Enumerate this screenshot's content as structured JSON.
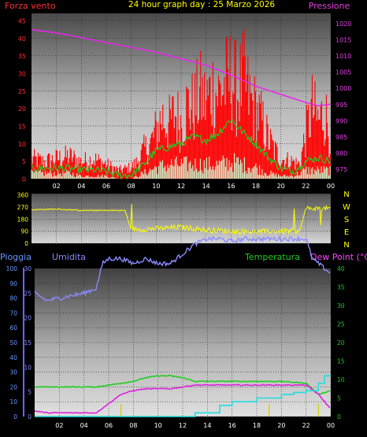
{
  "header": {
    "left_label": "Forza vento",
    "center_title": "24 hour graph day : 25 Marzo 2026",
    "right_label": "Pressione"
  },
  "colors": {
    "wind_axis": "#ff3030",
    "pressure_axis": "#e040e0",
    "wind_gust": "#ff0000",
    "wind_avg": "#22cc22",
    "wind_speed": "#c8f0c8",
    "pressure": "#ee22ee",
    "direction": "#ffff00",
    "pioggia_axis": "#6699ff",
    "umidita_axis": "#8888ff",
    "temp_axis": "#22cc22",
    "dew_axis": "#ff44ff",
    "humidity": "#8a8aff",
    "temperature": "#22cc22",
    "dewpoint": "#dd22dd",
    "rain": "#22dddd",
    "rain_rate": "#cccc00"
  },
  "chart_data": [
    {
      "type": "line",
      "title": "24 hour graph day : 25 Marzo 2026",
      "xlabel": "",
      "x_ticks": [
        "02",
        "04",
        "06",
        "08",
        "10",
        "12",
        "14",
        "16",
        "18",
        "20",
        "22",
        "00"
      ],
      "x_range_hours": [
        0,
        24
      ],
      "y_left": {
        "label": "Forza vento",
        "ticks": [
          0,
          5,
          10,
          15,
          20,
          25,
          30,
          35,
          40,
          45
        ],
        "range": [
          0,
          47
        ]
      },
      "y_right": {
        "label": "Pressione",
        "ticks": [
          975,
          980,
          985,
          990,
          995,
          1000,
          1005,
          1010,
          1015,
          1020
        ],
        "range": [
          972,
          1023
        ]
      },
      "grid": true,
      "series": [
        {
          "name": "Pressione",
          "axis": "right",
          "x": [
            0,
            2,
            4,
            6,
            8,
            10,
            12,
            14,
            16,
            18,
            20,
            22,
            23,
            24
          ],
          "y": [
            1018,
            1017,
            1015.5,
            1014,
            1012.5,
            1011,
            1009,
            1007,
            1004,
            1000.5,
            998,
            995.5,
            994.5,
            995
          ]
        },
        {
          "name": "",
          "axis": "left",
          "x": [
            0,
            1,
            2,
            3,
            4,
            5,
            6,
            7,
            8,
            8.5,
            9,
            9.5,
            10,
            10.5,
            11,
            11.5,
            12,
            12.5,
            13,
            13.5,
            14,
            14.5,
            15,
            15.5,
            16,
            16.5,
            17,
            17.5,
            18,
            18.5,
            19,
            19.5,
            20,
            21,
            21.5,
            22,
            22.5,
            23,
            23.5,
            24
          ],
          "y": [
            7,
            6,
            7,
            8,
            6,
            7,
            5,
            3,
            4,
            6,
            10,
            12,
            17,
            22,
            19,
            23,
            20,
            26,
            25,
            30,
            27,
            32,
            30,
            33,
            36,
            31,
            35,
            28,
            24,
            20,
            14,
            10,
            7,
            6,
            5,
            16,
            25,
            20,
            24,
            15
          ]
        },
        {
          "name": "",
          "axis": "left",
          "x": [
            0,
            1,
            2,
            3,
            4,
            5,
            6,
            7,
            8,
            9,
            10,
            11,
            12,
            13,
            14,
            15,
            16,
            17,
            18,
            19,
            20,
            21,
            22,
            23,
            24
          ],
          "y": [
            3,
            3,
            3,
            3,
            2.5,
            2.5,
            2,
            1,
            1,
            4,
            8,
            9,
            10,
            12,
            11,
            13,
            17,
            13,
            10,
            6,
            3,
            2,
            5,
            6,
            5
          ]
        },
        {
          "name": "",
          "axis": "left",
          "x": [
            0,
            1,
            2,
            3,
            4,
            5,
            6,
            7,
            8,
            9,
            10,
            11,
            12,
            13,
            14,
            15,
            16,
            17,
            18,
            19,
            20,
            21,
            22,
            23,
            24
          ],
          "y": [
            2,
            2,
            2,
            2,
            1,
            1,
            1,
            0,
            0,
            2,
            4,
            5,
            5,
            5,
            5,
            5,
            6,
            5,
            4,
            2,
            1,
            1,
            3,
            3,
            3
          ]
        }
      ]
    },
    {
      "type": "scatter",
      "title": "",
      "y_ticks": [
        0,
        90,
        180,
        270,
        360
      ],
      "y_range": [
        0,
        370
      ],
      "y_right_labels": [
        "N",
        "W",
        "S",
        "E",
        "N"
      ],
      "series": [
        {
          "name": "",
          "x": [
            0,
            2,
            4,
            5,
            6,
            7,
            7.5,
            8,
            10,
            12,
            14,
            16,
            18,
            20,
            21.5,
            22,
            24
          ],
          "y": [
            250,
            255,
            245,
            245,
            245,
            245,
            245,
            100,
            110,
            120,
            100,
            90,
            85,
            90,
            90,
            260,
            260
          ]
        }
      ]
    },
    {
      "type": "line",
      "title": "",
      "y_left_outer": {
        "label": "Pioggia",
        "ticks": [
          0,
          10,
          20,
          30,
          40,
          50,
          60,
          70,
          80,
          90,
          100
        ]
      },
      "y_left_inner": {
        "label": "Umidita",
        "ticks": [
          0,
          5,
          10,
          15,
          20,
          25,
          30
        ],
        "range": [
          0,
          30
        ]
      },
      "y_right": {
        "label": "Temperatura",
        "second_label": "Dew Point (°C)",
        "ticks": [
          0,
          5,
          10,
          15,
          20,
          25,
          30,
          35,
          40
        ],
        "range": [
          0,
          40
        ]
      },
      "x_ticks": [
        "02",
        "04",
        "06",
        "08",
        "10",
        "12",
        "14",
        "16",
        "18",
        "20",
        "22",
        "00"
      ],
      "series": [
        {
          "name": "Umidita",
          "x": [
            0,
            1,
            2,
            3,
            4,
            5,
            5.5,
            6,
            7,
            8,
            9,
            10,
            11,
            12,
            13,
            14,
            15,
            16,
            17,
            18,
            19,
            20,
            21,
            22,
            22.5,
            23,
            24
          ],
          "y": [
            25,
            23.5,
            24,
            24.5,
            25,
            26,
            31,
            32,
            32,
            31,
            32,
            31,
            31,
            33,
            35,
            36,
            36,
            35.5,
            36,
            36,
            36,
            36,
            36,
            36,
            32,
            31,
            29
          ]
        },
        {
          "name": "Temperatura",
          "x": [
            0,
            2,
            4,
            5,
            6,
            7,
            8,
            9,
            10,
            11,
            12,
            13,
            14,
            16,
            18,
            20,
            22,
            23,
            24
          ],
          "y": [
            8,
            8,
            8,
            8,
            8.5,
            9,
            9.5,
            10.5,
            11,
            11,
            10.5,
            9.5,
            9.5,
            9.5,
            9.5,
            9.5,
            9,
            6,
            7
          ]
        },
        {
          "name": "Dew Point",
          "x": [
            0,
            1,
            2,
            3,
            4,
            5,
            6,
            7,
            8,
            9,
            10,
            11,
            12,
            13,
            14,
            16,
            18,
            20,
            22,
            23,
            24
          ],
          "y": [
            1.5,
            1,
            1,
            1,
            1,
            1,
            3.5,
            6,
            7,
            7.5,
            7.5,
            7.5,
            8,
            8.5,
            8.5,
            8.5,
            8.5,
            8.5,
            8.5,
            6,
            2
          ]
        },
        {
          "name": "Pioggia",
          "x": [
            0,
            7,
            8,
            12,
            13,
            15,
            16,
            18,
            20,
            21,
            22,
            23,
            23.5,
            24
          ],
          "y": [
            0,
            0,
            0,
            0,
            1,
            3,
            4,
            5,
            6,
            6.5,
            7,
            9,
            11,
            11
          ]
        }
      ]
    }
  ]
}
